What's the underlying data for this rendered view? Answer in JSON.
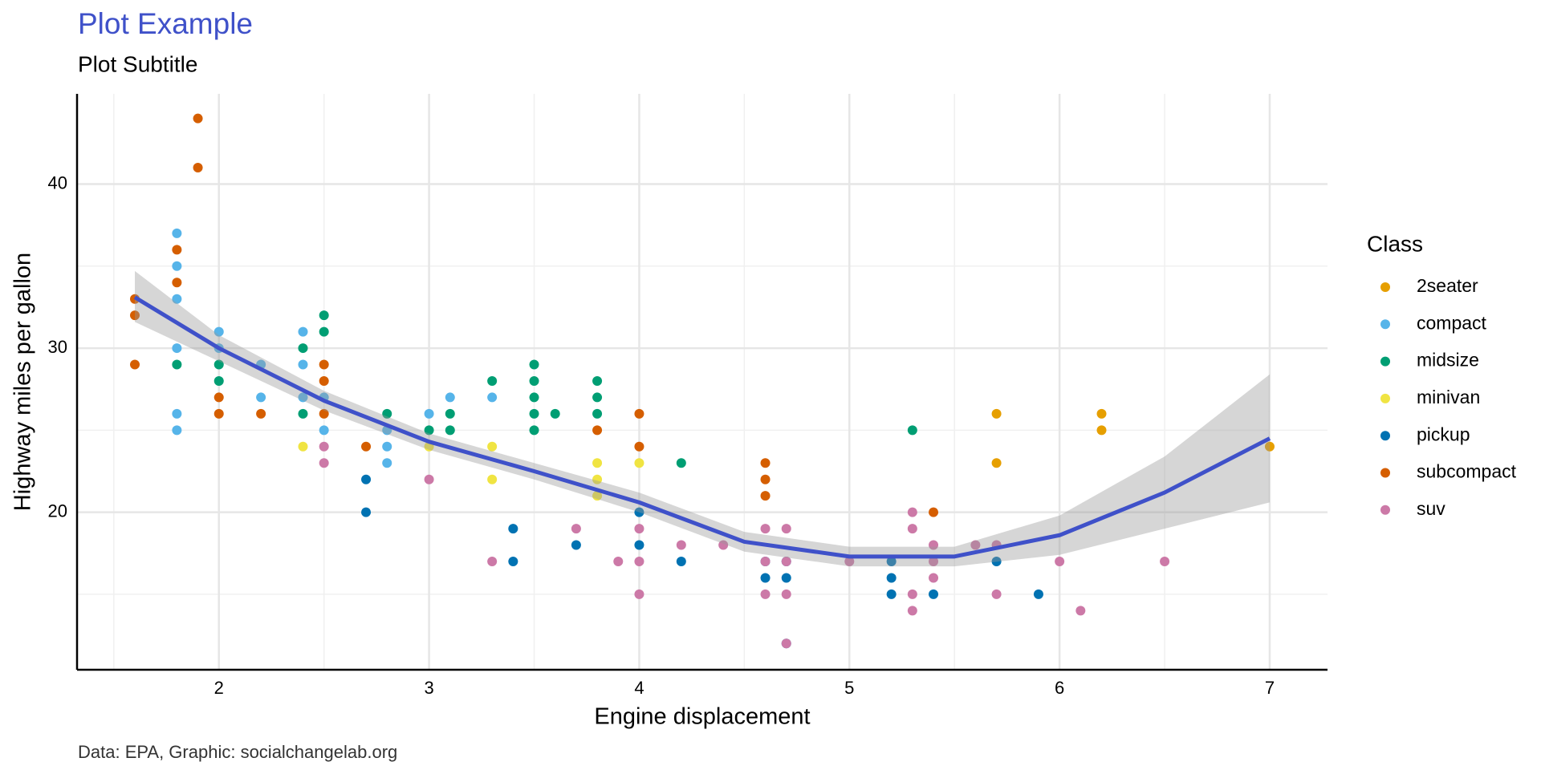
{
  "chart_data": {
    "type": "scatter",
    "title": "Plot Example",
    "subtitle": "Plot Subtitle",
    "x_label": "Engine displacement",
    "y_label": "Highway miles per gallon",
    "caption": "Data: EPA, Graphic: socialchangelab.org",
    "legend_title": "Class",
    "legend_position": "right",
    "grid": true,
    "xlim": [
      1.325,
      7.275
    ],
    "ylim": [
      10.4,
      45.5
    ],
    "xticks": [
      2,
      3,
      4,
      5,
      6,
      7
    ],
    "yticks": [
      20,
      30,
      40
    ],
    "minor_xticks": [
      1.5,
      2.5,
      3.5,
      4.5,
      5.5,
      6.5
    ],
    "minor_yticks": [
      15,
      25,
      35
    ],
    "series": [
      {
        "name": "2seater",
        "color": "#E69F00",
        "x": [
          5.7,
          5.7,
          6.2,
          6.2,
          7
        ],
        "values": [
          26,
          23,
          26,
          25,
          24
        ]
      },
      {
        "name": "compact",
        "color": "#56B4E9",
        "x": [
          1.8,
          1.8,
          1.8,
          1.8,
          1.8,
          1.8,
          2,
          2,
          2.2,
          2.2,
          2.4,
          2.4,
          2.4,
          2.5,
          2.5,
          2.8,
          2.8,
          2.8,
          3,
          3.1,
          3.3
        ],
        "values": [
          37,
          35,
          33,
          30,
          26,
          25,
          31,
          30,
          29,
          27,
          31,
          29,
          27,
          27,
          25,
          25,
          24,
          23,
          26,
          27,
          27
        ]
      },
      {
        "name": "midsize",
        "color": "#009E73",
        "x": [
          1.8,
          2,
          2,
          2.4,
          2.4,
          2.5,
          2.5,
          2.8,
          3,
          3.1,
          3.1,
          3.3,
          3.5,
          3.5,
          3.5,
          3.5,
          3.5,
          3.6,
          3.8,
          3.8,
          3.8,
          4.2,
          5.3
        ],
        "values": [
          29,
          29,
          28,
          30,
          26,
          32,
          31,
          26,
          25,
          26,
          25,
          28,
          29,
          28,
          27,
          26,
          25,
          26,
          28,
          27,
          26,
          23,
          25
        ]
      },
      {
        "name": "minivan",
        "color": "#F0E442",
        "x": [
          2.4,
          3,
          3.3,
          3.3,
          3.8,
          3.8,
          3.8,
          4
        ],
        "values": [
          24,
          24,
          24,
          22,
          23,
          22,
          21,
          23
        ]
      },
      {
        "name": "pickup",
        "color": "#0072B2",
        "x": [
          2.7,
          2.7,
          3.4,
          3.4,
          3.7,
          4,
          4,
          4.2,
          4.6,
          4.6,
          4.7,
          4.7,
          4.7,
          5.2,
          5.2,
          5.2,
          5.4,
          5.7,
          5.9
        ],
        "values": [
          22,
          20,
          19,
          17,
          18,
          20,
          18,
          17,
          17,
          16,
          17,
          16,
          12,
          17,
          16,
          15,
          15,
          17,
          15
        ]
      },
      {
        "name": "subcompact",
        "color": "#D55E00",
        "x": [
          1.6,
          1.6,
          1.6,
          1.8,
          1.8,
          1.9,
          1.9,
          2,
          2,
          2.2,
          2.5,
          2.5,
          2.5,
          2.7,
          3.8,
          4,
          4,
          4.6,
          4.6,
          4.6,
          5.4
        ],
        "values": [
          33,
          32,
          29,
          36,
          34,
          44,
          41,
          27,
          26,
          26,
          29,
          28,
          26,
          24,
          25,
          26,
          24,
          23,
          22,
          21,
          20
        ]
      },
      {
        "name": "suv",
        "color": "#CC79A7",
        "x": [
          2.5,
          2.5,
          3,
          3.3,
          3.7,
          3.9,
          4,
          4,
          4,
          4.2,
          4.4,
          4.6,
          4.6,
          4.6,
          4.7,
          4.7,
          4.7,
          4.7,
          5,
          5.3,
          5.3,
          5.3,
          5.3,
          5.4,
          5.4,
          5.4,
          5.6,
          5.7,
          5.7,
          6,
          6.1,
          6.5
        ],
        "values": [
          24,
          23,
          22,
          17,
          19,
          17,
          19,
          17,
          15,
          18,
          18,
          19,
          17,
          15,
          19,
          17,
          15,
          12,
          17,
          20,
          19,
          15,
          14,
          18,
          17,
          16,
          18,
          18,
          15,
          17,
          14,
          17
        ]
      }
    ],
    "smooth": {
      "color": "#3F51C9",
      "x": [
        1.6,
        2,
        2.5,
        3,
        3.5,
        4,
        4.5,
        5,
        5.5,
        6,
        6.5,
        7
      ],
      "y": [
        33.1,
        30,
        26.8,
        24.3,
        22.5,
        20.6,
        18.2,
        17.3,
        17.3,
        18.6,
        21.2,
        24.5
      ],
      "ymin": [
        31.6,
        29.2,
        26.2,
        23.8,
        22,
        20,
        17.6,
        16.7,
        16.7,
        17.4,
        19,
        20.6
      ],
      "ymax": [
        34.7,
        30.8,
        27.4,
        24.8,
        23,
        21.2,
        18.8,
        17.9,
        17.9,
        19.8,
        23.4,
        28.4
      ]
    }
  }
}
